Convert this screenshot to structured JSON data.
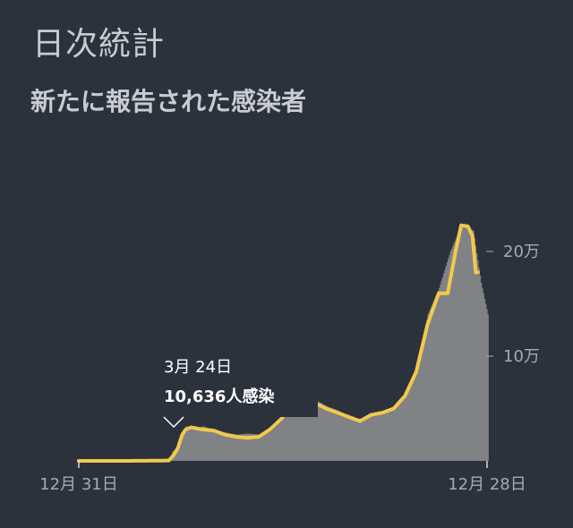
{
  "header": {
    "title": "日次統計",
    "subtitle": "新たに報告された感染者"
  },
  "tooltip": {
    "date": "3月 24日",
    "value": "10,636人感染"
  },
  "colors": {
    "background": "#2c323c",
    "bars": "#808286",
    "line": "#f2c94c",
    "text": "#c9ccd0"
  },
  "chart_data": {
    "type": "area",
    "title": "新たに報告された感染者",
    "x_range": [
      "12月 31日",
      "12月 28日"
    ],
    "xticks": [
      "12月 31日",
      "12月 28日"
    ],
    "yticks": [
      {
        "value": 100000,
        "label": "10万"
      },
      {
        "value": 200000,
        "label": "20万"
      }
    ],
    "ylim": [
      0,
      250000
    ],
    "y_axis_position": "right",
    "grid": false,
    "series": [
      {
        "kind": "daily_bars",
        "points": [
          [
            0,
            0
          ],
          [
            40,
            0
          ],
          [
            80,
            500
          ],
          [
            83,
            9000
          ],
          [
            90,
            15000
          ],
          [
            95,
            33000
          ],
          [
            100,
            30000
          ],
          [
            110,
            33000
          ],
          [
            120,
            29000
          ],
          [
            130,
            27000
          ],
          [
            140,
            25000
          ],
          [
            150,
            26000
          ],
          [
            160,
            25000
          ],
          [
            170,
            28000
          ],
          [
            180,
            38000
          ],
          [
            190,
            55000
          ],
          [
            198,
            61000
          ],
          [
            205,
            65000
          ],
          [
            210,
            58000
          ],
          [
            220,
            52000
          ],
          [
            230,
            48000
          ],
          [
            240,
            42000
          ],
          [
            250,
            40000
          ],
          [
            260,
            45000
          ],
          [
            270,
            47000
          ],
          [
            280,
            52000
          ],
          [
            290,
            65000
          ],
          [
            300,
            90000
          ],
          [
            310,
            140000
          ],
          [
            320,
            165000
          ],
          [
            330,
            200000
          ],
          [
            340,
            225000
          ],
          [
            350,
            220000
          ],
          [
            357,
            170000
          ],
          [
            363,
            140000
          ]
        ]
      },
      {
        "kind": "moving_average",
        "points": [
          [
            0,
            0
          ],
          [
            40,
            0
          ],
          [
            80,
            300
          ],
          [
            84,
            5000
          ],
          [
            88,
            12000
          ],
          [
            92,
            25000
          ],
          [
            95,
            30000
          ],
          [
            100,
            32000
          ],
          [
            110,
            30000
          ],
          [
            120,
            29000
          ],
          [
            130,
            25000
          ],
          [
            140,
            23000
          ],
          [
            150,
            22000
          ],
          [
            160,
            23000
          ],
          [
            170,
            30000
          ],
          [
            180,
            40000
          ],
          [
            190,
            55000
          ],
          [
            198,
            62000
          ],
          [
            205,
            60000
          ],
          [
            210,
            55000
          ],
          [
            220,
            50000
          ],
          [
            230,
            46000
          ],
          [
            240,
            42000
          ],
          [
            250,
            38000
          ],
          [
            260,
            44000
          ],
          [
            270,
            46000
          ],
          [
            280,
            50000
          ],
          [
            290,
            62000
          ],
          [
            300,
            85000
          ],
          [
            310,
            130000
          ],
          [
            320,
            160000
          ],
          [
            328,
            160000
          ],
          [
            335,
            200000
          ],
          [
            340,
            225000
          ],
          [
            346,
            224000
          ],
          [
            350,
            215000
          ],
          [
            353,
            180000
          ],
          [
            355,
            180000
          ]
        ]
      }
    ]
  }
}
